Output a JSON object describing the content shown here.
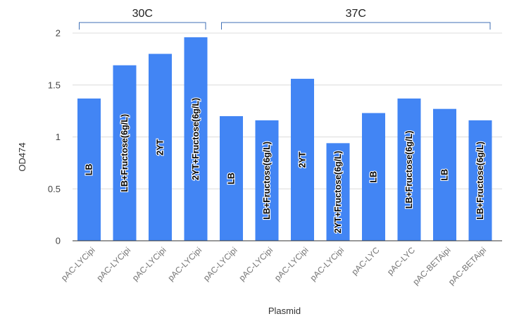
{
  "chart_data": {
    "type": "bar",
    "xlabel": "Plasmid",
    "ylabel": "OD474",
    "ylim": [
      0,
      2
    ],
    "yticks": [
      "0",
      "0.5",
      "1",
      "1.5",
      "2"
    ],
    "grid": true,
    "bar_color": "#4285f4",
    "categories": [
      "pAC-LYCipi",
      "pAC-LYCipi",
      "pAC-LYCipi",
      "pAC-LYCipi",
      "pAC-LYCipi",
      "pAC-LYCipi",
      "pAC-LYCipi",
      "pAC-LYCipi",
      "pAC-LYC",
      "pAC-LYC",
      "pAC-BETAipi",
      "pAC-BETAipi"
    ],
    "values": [
      1.37,
      1.69,
      1.8,
      1.96,
      1.2,
      1.16,
      1.56,
      0.94,
      1.23,
      1.37,
      1.27,
      1.16
    ],
    "bar_labels": [
      "LB",
      "LB+Fructose(6g/L)",
      "2YT",
      "2YT+Fructose(6g/L)",
      "LB",
      "LB+Fructose(6g/L)",
      "2YT",
      "2YT+Fructose(6g/L)",
      "LB",
      "LB+Fructose(6g/L)",
      "LB",
      "LB+Fructose(6g/L)"
    ],
    "groups": [
      {
        "label": "30C",
        "start": 0,
        "end": 3
      },
      {
        "label": "37C",
        "start": 4,
        "end": 11
      }
    ]
  }
}
